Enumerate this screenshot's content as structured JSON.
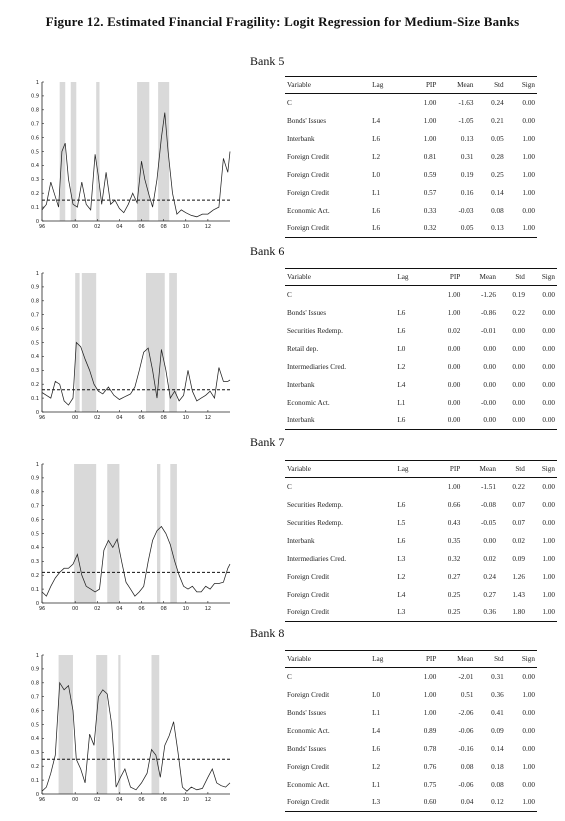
{
  "figure_title": "Figure 12. Estimated Financial Fragility: Logit Regression for Medium-Size Banks",
  "table_headers": [
    "Variable",
    "Lag",
    "PIP",
    "Mean",
    "Std",
    "Sign"
  ],
  "chart_data": [
    {
      "type": "line",
      "name": "Bank 5",
      "x_tick_labels": [
        "96",
        "00",
        "02",
        "04",
        "06",
        "08",
        "10",
        "12"
      ],
      "y_tick_labels": [
        "0",
        "0.1",
        "0.2",
        "0.3",
        "0.4",
        "0.5",
        "0.6",
        "0.7",
        "0.8",
        "0.9",
        "1"
      ],
      "ylim": [
        0,
        1
      ],
      "xlim": [
        1997,
        2014
      ],
      "threshold": 0.15,
      "shaded": [
        [
          1998.6,
          1999.1
        ],
        [
          1999.6,
          2000.1
        ],
        [
          2001.9,
          2002.2
        ],
        [
          2005.6,
          2006.7
        ],
        [
          2007.5,
          2008.5
        ]
      ],
      "x": [
        1997,
        1997.4,
        1997.8,
        1998.1,
        1998.5,
        1998.8,
        1999.1,
        1999.4,
        1999.8,
        2000.2,
        2000.6,
        2001.0,
        2001.4,
        2001.8,
        2002.1,
        2002.4,
        2002.8,
        2003.2,
        2003.6,
        2004.0,
        2004.4,
        2004.8,
        2005.2,
        2005.6,
        2006.0,
        2006.3,
        2006.7,
        2007.0,
        2007.4,
        2007.8,
        2008.1,
        2008.4,
        2008.8,
        2009.2,
        2009.6,
        2010.0,
        2010.5,
        2011.0,
        2011.5,
        2012.0,
        2012.5,
        2013.0,
        2013.4,
        2013.8,
        2014.0
      ],
      "y": [
        0.08,
        0.12,
        0.28,
        0.2,
        0.1,
        0.5,
        0.56,
        0.3,
        0.12,
        0.1,
        0.28,
        0.12,
        0.08,
        0.48,
        0.32,
        0.12,
        0.35,
        0.12,
        0.15,
        0.09,
        0.06,
        0.12,
        0.2,
        0.13,
        0.43,
        0.3,
        0.18,
        0.1,
        0.3,
        0.6,
        0.78,
        0.5,
        0.2,
        0.05,
        0.08,
        0.06,
        0.04,
        0.03,
        0.05,
        0.05,
        0.08,
        0.1,
        0.45,
        0.35,
        0.5
      ]
    },
    {
      "type": "line",
      "name": "Bank 6",
      "x_tick_labels": [
        "96",
        "00",
        "02",
        "04",
        "06",
        "08",
        "10",
        "12"
      ],
      "y_tick_labels": [
        "0",
        "0.1",
        "0.2",
        "0.3",
        "0.4",
        "0.5",
        "0.6",
        "0.7",
        "0.8",
        "0.9",
        "1"
      ],
      "ylim": [
        0,
        1
      ],
      "xlim": [
        1997,
        2014
      ],
      "threshold": 0.16,
      "shaded": [
        [
          2000.0,
          2000.4
        ],
        [
          2000.6,
          2001.9
        ],
        [
          2006.4,
          2008.1
        ],
        [
          2008.5,
          2009.2
        ]
      ],
      "x": [
        1997,
        1997.4,
        1997.8,
        1998.2,
        1998.6,
        1999.0,
        1999.4,
        1999.8,
        2000.1,
        2000.5,
        2000.9,
        2001.3,
        2001.7,
        2002.1,
        2002.5,
        2003.0,
        2003.5,
        2004.0,
        2004.5,
        2005.0,
        2005.4,
        2005.8,
        2006.2,
        2006.6,
        2007.0,
        2007.4,
        2007.8,
        2008.2,
        2008.6,
        2009.0,
        2009.4,
        2009.8,
        2010.2,
        2010.6,
        2011.0,
        2011.4,
        2011.8,
        2012.2,
        2012.6,
        2013.0,
        2013.4,
        2013.8,
        2014.0
      ],
      "y": [
        0.14,
        0.12,
        0.1,
        0.22,
        0.2,
        0.08,
        0.05,
        0.1,
        0.5,
        0.47,
        0.38,
        0.3,
        0.2,
        0.15,
        0.13,
        0.18,
        0.12,
        0.09,
        0.11,
        0.13,
        0.18,
        0.3,
        0.43,
        0.46,
        0.3,
        0.1,
        0.45,
        0.3,
        0.1,
        0.15,
        0.08,
        0.12,
        0.3,
        0.15,
        0.08,
        0.1,
        0.12,
        0.15,
        0.1,
        0.32,
        0.22,
        0.22,
        0.23
      ]
    },
    {
      "type": "line",
      "name": "Bank 7",
      "x_tick_labels": [
        "96",
        "00",
        "02",
        "04",
        "06",
        "08",
        "10",
        "12"
      ],
      "y_tick_labels": [
        "0",
        "0.1",
        "0.2",
        "0.3",
        "0.4",
        "0.5",
        "0.6",
        "0.7",
        "0.8",
        "0.9",
        "1"
      ],
      "ylim": [
        0,
        1
      ],
      "xlim": [
        1997,
        2014
      ],
      "threshold": 0.22,
      "shaded": [
        [
          1999.9,
          2001.9
        ],
        [
          2002.9,
          2004.0
        ],
        [
          2007.4,
          2007.7
        ],
        [
          2008.6,
          2009.2
        ]
      ],
      "x": [
        1997,
        1997.4,
        1997.8,
        1998.2,
        1998.6,
        1999.0,
        1999.4,
        1999.8,
        2000.2,
        2000.6,
        2001.0,
        2001.4,
        2001.8,
        2002.2,
        2002.6,
        2003.0,
        2003.4,
        2003.8,
        2004.2,
        2004.6,
        2005.0,
        2005.4,
        2005.8,
        2006.2,
        2006.6,
        2007.0,
        2007.4,
        2007.8,
        2008.2,
        2008.6,
        2009.0,
        2009.4,
        2009.8,
        2010.2,
        2010.6,
        2011.0,
        2011.4,
        2011.8,
        2012.2,
        2012.6,
        2013.0,
        2013.4,
        2013.8,
        2014.0
      ],
      "y": [
        0.08,
        0.05,
        0.12,
        0.18,
        0.22,
        0.25,
        0.25,
        0.28,
        0.35,
        0.2,
        0.12,
        0.1,
        0.08,
        0.1,
        0.38,
        0.45,
        0.4,
        0.46,
        0.3,
        0.15,
        0.1,
        0.05,
        0.08,
        0.12,
        0.3,
        0.45,
        0.52,
        0.55,
        0.5,
        0.42,
        0.3,
        0.2,
        0.12,
        0.1,
        0.12,
        0.08,
        0.08,
        0.12,
        0.1,
        0.14,
        0.14,
        0.15,
        0.25,
        0.28
      ]
    },
    {
      "type": "line",
      "name": "Bank 8",
      "x_tick_labels": [
        "96",
        "00",
        "02",
        "04",
        "06",
        "08",
        "10",
        "12"
      ],
      "y_tick_labels": [
        "0",
        "0.1",
        "0.2",
        "0.3",
        "0.4",
        "0.5",
        "0.6",
        "0.7",
        "0.8",
        "0.9",
        "1"
      ],
      "ylim": [
        0,
        1
      ],
      "xlim": [
        1997,
        2014
      ],
      "threshold": 0.25,
      "shaded": [
        [
          1998.5,
          1999.8
        ],
        [
          2001.9,
          2002.9
        ],
        [
          2003.9,
          2004.1
        ],
        [
          2006.9,
          2007.6
        ]
      ],
      "x": [
        1997,
        1997.4,
        1997.8,
        1998.2,
        1998.6,
        1999.0,
        1999.4,
        1999.8,
        2000.1,
        2000.5,
        2000.9,
        2001.3,
        2001.7,
        2002.1,
        2002.5,
        2002.9,
        2003.3,
        2003.7,
        2004.1,
        2004.5,
        2005.0,
        2005.5,
        2006.0,
        2006.5,
        2006.9,
        2007.3,
        2007.7,
        2008.1,
        2008.5,
        2008.9,
        2009.3,
        2009.7,
        2010.1,
        2010.5,
        2011.0,
        2011.5,
        2012.0,
        2012.4,
        2012.8,
        2013.2,
        2013.6,
        2014.0
      ],
      "y": [
        0.02,
        0.05,
        0.15,
        0.28,
        0.8,
        0.75,
        0.78,
        0.6,
        0.25,
        0.18,
        0.08,
        0.43,
        0.35,
        0.7,
        0.75,
        0.72,
        0.5,
        0.05,
        0.12,
        0.18,
        0.05,
        0.03,
        0.08,
        0.15,
        0.32,
        0.28,
        0.12,
        0.35,
        0.42,
        0.52,
        0.3,
        0.05,
        0.02,
        0.05,
        0.03,
        0.04,
        0.12,
        0.18,
        0.08,
        0.06,
        0.05,
        0.08
      ]
    }
  ],
  "banks": [
    {
      "title": "Bank 5",
      "rows": [
        [
          "C",
          "",
          "1.00",
          "-1.63",
          "0.24",
          "0.00"
        ],
        [
          "Bonds' Issues",
          "L4",
          "1.00",
          "-1.05",
          "0.21",
          "0.00"
        ],
        [
          "Interbank",
          "L6",
          "1.00",
          "0.13",
          "0.05",
          "1.00"
        ],
        [
          "Foreign Credit",
          "L2",
          "0.81",
          "0.31",
          "0.28",
          "1.00"
        ],
        [
          "Foreign Credit",
          "L0",
          "0.59",
          "0.19",
          "0.25",
          "1.00"
        ],
        [
          "Foreign Credit",
          "L1",
          "0.57",
          "0.16",
          "0.14",
          "1.00"
        ],
        [
          "Economic Act.",
          "L6",
          "0.33",
          "-0.03",
          "0.08",
          "0.00"
        ],
        [
          "Foreign Credit",
          "L6",
          "0.32",
          "0.05",
          "0.13",
          "1.00"
        ]
      ]
    },
    {
      "title": "Bank 6",
      "rows": [
        [
          "C",
          "",
          "1.00",
          "-1.26",
          "0.19",
          "0.00"
        ],
        [
          "Bonds' Issues",
          "L6",
          "1.00",
          "-0.86",
          "0.22",
          "0.00"
        ],
        [
          "Securities Redemp.",
          "L6",
          "0.02",
          "-0.01",
          "0.00",
          "0.00"
        ],
        [
          "Retail dep.",
          "L0",
          "0.00",
          "0.00",
          "0.00",
          "0.00"
        ],
        [
          "Intermediaries Cred.",
          "L2",
          "0.00",
          "0.00",
          "0.00",
          "0.00"
        ],
        [
          "Interbank",
          "L4",
          "0.00",
          "0.00",
          "0.00",
          "0.00"
        ],
        [
          "Economic Act.",
          "L1",
          "0.00",
          "-0.00",
          "0.00",
          "0.00"
        ],
        [
          "Interbank",
          "L6",
          "0.00",
          "0.00",
          "0.00",
          "0.00"
        ]
      ]
    },
    {
      "title": "Bank 7",
      "rows": [
        [
          "C",
          "",
          "1.00",
          "-1.51",
          "0.22",
          "0.00"
        ],
        [
          "Securities Redemp.",
          "L6",
          "0.66",
          "-0.08",
          "0.07",
          "0.00"
        ],
        [
          "Securities Redemp.",
          "L5",
          "0.43",
          "-0.05",
          "0.07",
          "0.00"
        ],
        [
          "Interbank",
          "L6",
          "0.35",
          "0.00",
          "0.02",
          "1.00"
        ],
        [
          "Intermediaries Cred.",
          "L3",
          "0.32",
          "0.02",
          "0.09",
          "1.00"
        ],
        [
          "Foreign Credit",
          "L2",
          "0.27",
          "0.24",
          "1.26",
          "1.00"
        ],
        [
          "Foreign Credit",
          "L4",
          "0.25",
          "0.27",
          "1.43",
          "1.00"
        ],
        [
          "Foreign Credit",
          "L3",
          "0.25",
          "0.36",
          "1.80",
          "1.00"
        ]
      ]
    },
    {
      "title": "Bank 8",
      "rows": [
        [
          "C",
          "",
          "1.00",
          "-2.01",
          "0.31",
          "0.00"
        ],
        [
          "Foreign Credit",
          "L0",
          "1.00",
          "0.51",
          "0.36",
          "1.00"
        ],
        [
          "Bonds' Issues",
          "L1",
          "1.00",
          "-2.06",
          "0.41",
          "0.00"
        ],
        [
          "Economic Act.",
          "L4",
          "0.89",
          "-0.06",
          "0.09",
          "0.00"
        ],
        [
          "Bonds' Issues",
          "L6",
          "0.78",
          "-0.16",
          "0.14",
          "0.00"
        ],
        [
          "Foreign Credit",
          "L2",
          "0.76",
          "0.08",
          "0.18",
          "1.00"
        ],
        [
          "Economic Act.",
          "L1",
          "0.75",
          "-0.06",
          "0.08",
          "0.00"
        ],
        [
          "Foreign Credit",
          "L3",
          "0.60",
          "0.04",
          "0.12",
          "1.00"
        ]
      ]
    }
  ]
}
